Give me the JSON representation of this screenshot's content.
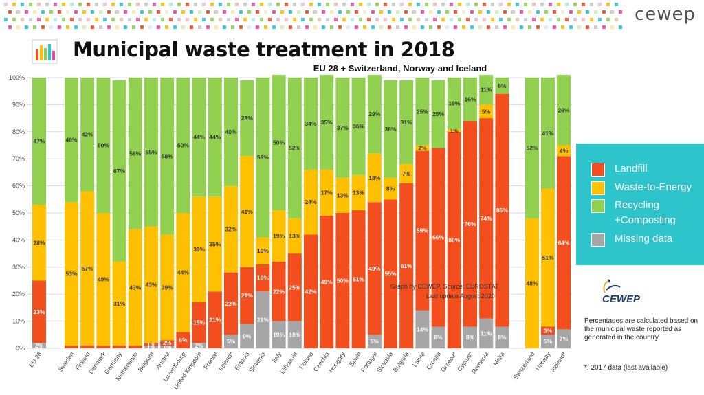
{
  "header": {
    "brand": "cewep",
    "title": "Municipal waste treatment in 2018",
    "subtitle": "EU 28 + Switzerland, Norway and Iceland"
  },
  "source_text": "Graph by CEWEP, Source: EUROSTAT",
  "update_text": "Last update August 2020",
  "note": "Percentages are calculated based on the municipal waste reported as generated in the country",
  "footnote": "*: 2017 data (last available)",
  "logo_text": "CEWEP",
  "legend": {
    "items": [
      {
        "label": "Landfill",
        "color": "#f24e1e"
      },
      {
        "label": "Waste-to-Energy",
        "color": "#ffc000"
      },
      {
        "label": "Recycling +Composting",
        "color": "#92d050"
      },
      {
        "label": "Missing data",
        "color": "#a6a6a6"
      }
    ]
  },
  "chart_data": {
    "type": "bar",
    "stacked": true,
    "ylim": [
      0,
      100
    ],
    "yticks": [
      "0%",
      "10%",
      "20%",
      "30%",
      "40%",
      "50%",
      "60%",
      "70%",
      "80%",
      "90%",
      "100%"
    ],
    "grid": true,
    "legend_position": "right",
    "categories": [
      "EU 28",
      "Sweden",
      "Finland",
      "Denmark",
      "Germany",
      "Netherlands",
      "Belgium",
      "Austria",
      "Luxembourg",
      "United Kingdom",
      "France",
      "Ireland*",
      "Estonia",
      "Slovenia",
      "Italy",
      "Lithuania",
      "Poland",
      "Czechia",
      "Hungary",
      "Spain",
      "Portugal",
      "Slovakia",
      "Bulgaria",
      "Latvia",
      "Croatia",
      "Greece*",
      "Cyprus*",
      "Romania",
      "Malta",
      "Switzerland",
      "Norway",
      "Iceland*"
    ],
    "series": [
      {
        "name": "Missing data",
        "color": "#a6a6a6",
        "values": [
          2,
          0,
          0,
          0,
          0,
          0,
          1,
          1,
          0,
          2,
          0,
          5,
          9,
          21,
          10,
          10,
          0,
          0,
          0,
          0,
          5,
          0,
          0,
          14,
          8,
          0,
          8,
          11,
          8,
          0,
          5,
          7
        ],
        "labels": [
          "2%",
          "",
          "",
          "",
          "",
          "",
          "1%",
          "1%",
          "",
          "2%",
          "",
          "5%",
          "9%",
          "21%",
          "10%",
          "10%",
          "",
          "",
          "",
          "",
          "5%",
          "",
          "",
          "14%",
          "8%",
          "",
          "8%",
          "11%",
          "8%",
          "",
          "5%",
          "7%"
        ]
      },
      {
        "name": "Landfill",
        "color": "#f24e1e",
        "values": [
          23,
          1,
          1,
          1,
          1,
          1,
          1,
          2,
          6,
          15,
          21,
          23,
          21,
          10,
          22,
          25,
          42,
          49,
          50,
          51,
          49,
          55,
          61,
          59,
          66,
          80,
          76,
          74,
          86,
          0,
          3,
          64
        ],
        "labels": [
          "23%",
          "",
          "",
          "",
          "",
          "",
          "1%",
          "2%",
          "6%",
          "15%",
          "21%",
          "23%",
          "21%",
          "10%",
          "22%",
          "25%",
          "42%",
          "49%",
          "50%",
          "51%",
          "49%",
          "55%",
          "61%",
          "59%",
          "66%",
          "80%",
          "76%",
          "74%",
          "86%",
          "",
          "3%",
          "64%"
        ]
      },
      {
        "name": "Waste-to-Energy",
        "color": "#ffc000",
        "values": [
          28,
          53,
          57,
          49,
          31,
          43,
          43,
          39,
          44,
          39,
          35,
          32,
          41,
          10,
          19,
          13,
          24,
          17,
          13,
          13,
          18,
          8,
          7,
          2,
          0,
          1,
          0,
          5,
          0,
          48,
          51,
          4
        ],
        "labels": [
          "28%",
          "53%",
          "57%",
          "49%",
          "31%",
          "43%",
          "43%",
          "39%",
          "44%",
          "39%",
          "35%",
          "32%",
          "41%",
          "10%",
          "19%",
          "13%",
          "24%",
          "17%",
          "13%",
          "13%",
          "18%",
          "8%",
          "7%",
          "2%",
          "",
          "1%",
          "",
          "5%",
          "",
          "48%",
          "51%",
          "4%"
        ]
      },
      {
        "name": "Recycling +Composting",
        "color": "#92d050",
        "values": [
          47,
          46,
          42,
          50,
          67,
          56,
          55,
          58,
          50,
          44,
          44,
          40,
          28,
          59,
          50,
          52,
          34,
          35,
          37,
          36,
          29,
          36,
          31,
          25,
          25,
          19,
          16,
          11,
          6,
          52,
          41,
          26
        ],
        "labels": [
          "47%",
          "46%",
          "42%",
          "50%",
          "67%",
          "56%",
          "55%",
          "58%",
          "50%",
          "44%",
          "44%",
          "40%",
          "28%",
          "59%",
          "50%",
          "52%",
          "34%",
          "35%",
          "37%",
          "36%",
          "29%",
          "36%",
          "31%",
          "25%",
          "25%",
          "19%",
          "16%",
          "11%",
          "6%",
          "52%",
          "41%",
          "26%"
        ]
      }
    ]
  }
}
